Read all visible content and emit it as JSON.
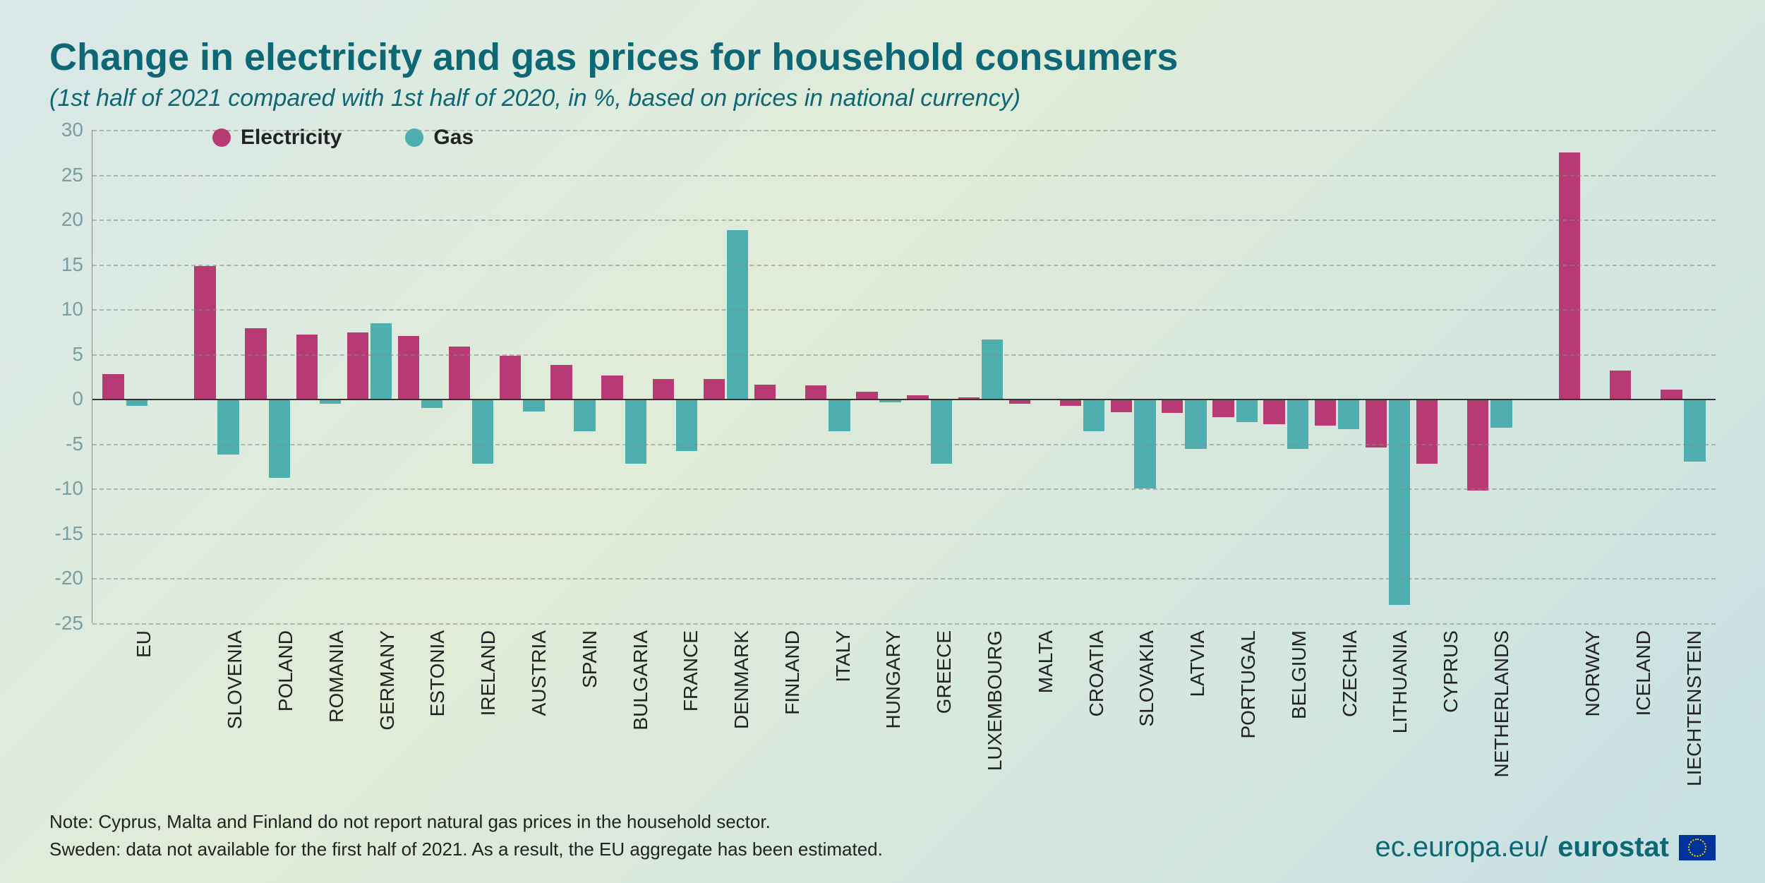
{
  "title": "Change in electricity and gas prices for household consumers",
  "subtitle": "(1st half of 2021 compared with 1st half of 2020, in %, based on prices in national currency)",
  "title_fontsize": 54,
  "subtitle_fontsize": 34,
  "legend": {
    "series1": {
      "label": "Electricity",
      "color": "#b83a75"
    },
    "series2": {
      "label": "Gas",
      "color": "#4eaeb0"
    }
  },
  "chart": {
    "type": "bar",
    "ylim": [
      -25,
      30
    ],
    "ytick_step": 5,
    "yticks": [
      30,
      25,
      20,
      15,
      10,
      5,
      0,
      -5,
      -10,
      -15,
      -20,
      -25
    ],
    "grid_color": "#888888",
    "grid_dash": true,
    "background": "transparent",
    "bar_series": [
      "electricity",
      "gas"
    ],
    "bar_colors": {
      "electricity": "#b83a75",
      "gas": "#4eaeb0"
    },
    "groups": [
      {
        "items": [
          {
            "label": "EU",
            "electricity": 2.8,
            "gas": -0.8
          }
        ]
      },
      {
        "items": [
          {
            "label": "SLOVENIA",
            "electricity": 14.8,
            "gas": -6.2
          },
          {
            "label": "POLAND",
            "electricity": 7.9,
            "gas": -8.8
          },
          {
            "label": "ROMANIA",
            "electricity": 7.2,
            "gas": -0.5
          },
          {
            "label": "GERMANY",
            "electricity": 7.4,
            "gas": 8.4
          },
          {
            "label": "ESTONIA",
            "electricity": 7.0,
            "gas": -1.0
          },
          {
            "label": "IRELAND",
            "electricity": 5.8,
            "gas": -7.2
          },
          {
            "label": "AUSTRIA",
            "electricity": 4.8,
            "gas": -1.4
          },
          {
            "label": "SPAIN",
            "electricity": 3.8,
            "gas": -3.6
          },
          {
            "label": "BULGARIA",
            "electricity": 2.6,
            "gas": -7.2
          },
          {
            "label": "FRANCE",
            "electricity": 2.2,
            "gas": -5.8
          },
          {
            "label": "DENMARK",
            "electricity": 2.2,
            "gas": 18.8
          },
          {
            "label": "FINLAND",
            "electricity": 1.6,
            "gas": null
          },
          {
            "label": "ITALY",
            "electricity": 1.5,
            "gas": -3.6
          },
          {
            "label": "HUNGARY",
            "electricity": 0.8,
            "gas": -0.4
          },
          {
            "label": "GREECE",
            "electricity": 0.4,
            "gas": -7.2
          },
          {
            "label": "LUXEMBOURG",
            "electricity": 0.2,
            "gas": 6.6
          },
          {
            "label": "MALTA",
            "electricity": -0.5,
            "gas": null
          },
          {
            "label": "CROATIA",
            "electricity": -0.8,
            "gas": -3.6
          },
          {
            "label": "SLOVAKIA",
            "electricity": -1.5,
            "gas": -10.0
          },
          {
            "label": "LATVIA",
            "electricity": -1.6,
            "gas": -5.6
          },
          {
            "label": "PORTUGAL",
            "electricity": -2.0,
            "gas": -2.6
          },
          {
            "label": "BELGIUM",
            "electricity": -2.8,
            "gas": -5.6
          },
          {
            "label": "CZECHIA",
            "electricity": -3.0,
            "gas": -3.4
          },
          {
            "label": "LITHUANIA",
            "electricity": -5.4,
            "gas": -23.0
          },
          {
            "label": "CYPRUS",
            "electricity": -7.2,
            "gas": null
          },
          {
            "label": "NETHERLANDS",
            "electricity": -10.2,
            "gas": -3.2
          }
        ]
      },
      {
        "items": [
          {
            "label": "NORWAY",
            "electricity": 27.5,
            "gas": null
          },
          {
            "label": "ICELAND",
            "electricity": 3.2,
            "gas": null
          },
          {
            "label": "LIECHTENSTEIN",
            "electricity": 1.0,
            "gas": -7.0
          }
        ]
      }
    ]
  },
  "note_line1": "Note: Cyprus, Malta and Finland do not report natural gas prices in the household sector.",
  "note_line2": "Sweden: data not available for the first half of 2021. As a result, the EU aggregate has been estimated.",
  "footer": {
    "domain": "ec.europa.eu/",
    "brand": "eurostat"
  }
}
